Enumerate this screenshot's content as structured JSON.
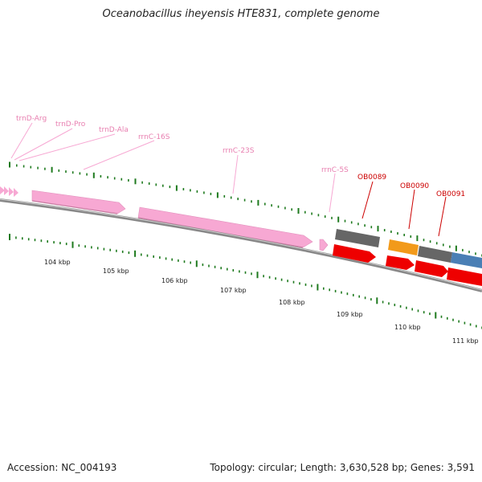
{
  "title": "Oceanobacillus iheyensis HTE831, complete genome",
  "footer": {
    "accession": "Accession: NC_004193",
    "summary": "Topology: circular; Length: 3,630,528 bp; Genes: 3,591"
  },
  "colors": {
    "rna_feature": "#f7a8d3",
    "rna_label": "#e87fb0",
    "cds_forward": "#ee0000",
    "gene_label": "#cc0000",
    "tick": "#1e7a1e",
    "backbone": "#888888",
    "gray_gene": "#666666",
    "orange_gene": "#f29a1a",
    "blue_gene": "#4a7fb5"
  },
  "genes": [
    {
      "name": "trnD-Arg",
      "type": "tRNA"
    },
    {
      "name": "trnD-Pro",
      "type": "tRNA"
    },
    {
      "name": "trnD-Ala",
      "type": "tRNA"
    },
    {
      "name": "rrnC-16S",
      "type": "rRNA"
    },
    {
      "name": "rrnC-23S",
      "type": "rRNA"
    },
    {
      "name": "rrnC-5S",
      "type": "rRNA"
    },
    {
      "name": "OB0089",
      "type": "CDS"
    },
    {
      "name": "OB0090",
      "type": "CDS"
    },
    {
      "name": "OB0091",
      "type": "CDS"
    }
  ],
  "scale": {
    "labels": [
      "104 kbp",
      "105 kbp",
      "106 kbp",
      "107 kbp",
      "108 kbp",
      "109 kbp",
      "110 kbp",
      "111 kbp"
    ]
  }
}
